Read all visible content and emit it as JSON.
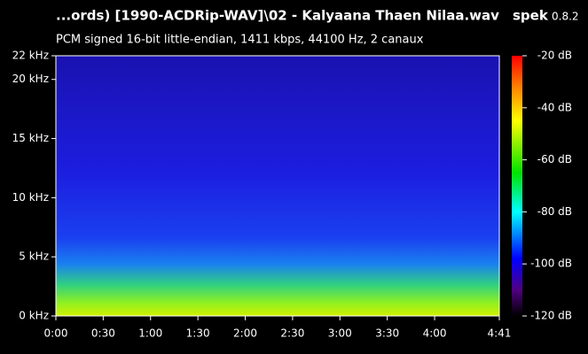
{
  "chart_data": {
    "type": "spectrogram",
    "title": "...ords) [1990-ACDRip-WAV]\\02 - Kalyaana Thaen Nilaa.wav",
    "app": "spek",
    "version": "0.8.2",
    "subtitle": "PCM signed 16-bit little-endian, 1411 kbps, 44100 Hz, 2 canaux",
    "xlim": [
      0,
      281
    ],
    "xticks": [
      {
        "value": 0,
        "label": "0:00"
      },
      {
        "value": 30,
        "label": "0:30"
      },
      {
        "value": 60,
        "label": "1:00"
      },
      {
        "value": 90,
        "label": "1:30"
      },
      {
        "value": 120,
        "label": "2:00"
      },
      {
        "value": 150,
        "label": "2:30"
      },
      {
        "value": 180,
        "label": "3:00"
      },
      {
        "value": 210,
        "label": "3:30"
      },
      {
        "value": 240,
        "label": "4:00"
      },
      {
        "value": 281,
        "label": "4:41"
      }
    ],
    "ylim": [
      0,
      22
    ],
    "yticks": [
      {
        "value": 0,
        "label": "0 kHz"
      },
      {
        "value": 5,
        "label": "5 kHz"
      },
      {
        "value": 10,
        "label": "10 kHz"
      },
      {
        "value": 15,
        "label": "15 kHz"
      },
      {
        "value": 20,
        "label": "20 kHz"
      },
      {
        "value": 22,
        "label": "22 kHz"
      }
    ],
    "colorbar": {
      "lim": [
        -120,
        -20
      ],
      "ticks": [
        {
          "value": -20,
          "label": "-20 dB"
        },
        {
          "value": -40,
          "label": "-40 dB"
        },
        {
          "value": -60,
          "label": "-60 dB"
        },
        {
          "value": -80,
          "label": "-80 dB"
        },
        {
          "value": -100,
          "label": "-100 dB"
        },
        {
          "value": -120,
          "label": "-120 dB"
        }
      ]
    }
  }
}
